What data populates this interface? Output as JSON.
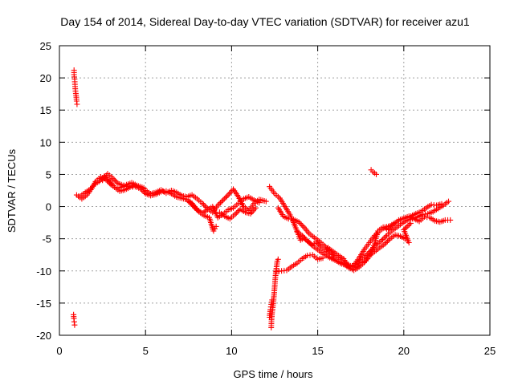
{
  "chart_data": {
    "type": "scatter",
    "title": "Day 154 of 2014, Sidereal Day-to-day VTEC variation (SDTVAR) for receiver azu1",
    "xlabel": "GPS time / hours",
    "ylabel": "SDTVAR / TECUs",
    "xlim": [
      0,
      25
    ],
    "ylim": [
      -20,
      25
    ],
    "x_ticks": [
      "0",
      "5",
      "10",
      "15",
      "20",
      "25"
    ],
    "y_ticks": [
      "-20",
      "-15",
      "-10",
      "-5",
      "0",
      "5",
      "10",
      "15",
      "20",
      "25"
    ],
    "grid": true,
    "marker": "+",
    "series": [
      {
        "name": "SDTVAR",
        "color": "#ff0000",
        "segments": [
          [
            [
              0.85,
              21.2
            ],
            [
              0.85,
              20.5
            ],
            [
              0.88,
              19.8
            ],
            [
              0.9,
              19.0
            ],
            [
              0.92,
              18.3
            ],
            [
              0.95,
              17.6
            ],
            [
              0.98,
              17.0
            ],
            [
              1.0,
              16.4
            ],
            [
              1.02,
              15.9
            ]
          ],
          [
            [
              0.82,
              -16.8
            ],
            [
              0.84,
              -17.4
            ],
            [
              0.86,
              -17.9
            ],
            [
              0.88,
              -18.4
            ]
          ],
          [
            [
              1.0,
              1.8
            ],
            [
              1.3,
              1.2
            ],
            [
              1.6,
              1.8
            ],
            [
              1.9,
              2.9
            ],
            [
              2.1,
              3.9
            ],
            [
              2.4,
              4.6
            ],
            [
              2.7,
              4.2
            ],
            [
              3.0,
              3.4
            ],
            [
              3.3,
              2.8
            ],
            [
              3.6,
              3.0
            ],
            [
              3.9,
              3.4
            ],
            [
              4.2,
              3.7
            ],
            [
              4.5,
              3.3
            ],
            [
              4.8,
              3.0
            ],
            [
              5.0,
              2.5
            ],
            [
              5.3,
              2.0
            ],
            [
              5.6,
              2.2
            ],
            [
              5.9,
              2.6
            ],
            [
              6.2,
              2.1
            ],
            [
              6.5,
              2.5
            ],
            [
              6.8,
              2.2
            ],
            [
              7.1,
              1.7
            ],
            [
              7.4,
              1.5
            ],
            [
              7.7,
              1.8
            ],
            [
              8.0,
              1.2
            ],
            [
              8.3,
              0.5
            ],
            [
              8.6,
              -0.3
            ],
            [
              8.9,
              -0.9
            ],
            [
              9.2,
              0.2
            ],
            [
              9.5,
              1.0
            ],
            [
              9.8,
              1.8
            ],
            [
              10.1,
              2.7
            ],
            [
              10.4,
              1.5
            ],
            [
              10.7,
              0.0
            ],
            [
              11.0,
              -0.6
            ],
            [
              11.3,
              0.5
            ],
            [
              11.6,
              1.1
            ],
            [
              12.0,
              0.8
            ]
          ],
          [
            [
              1.2,
              1.6
            ],
            [
              1.5,
              2.2
            ],
            [
              1.8,
              2.7
            ],
            [
              2.0,
              3.4
            ],
            [
              2.3,
              3.9
            ],
            [
              2.6,
              4.7
            ],
            [
              2.9,
              4.1
            ],
            [
              3.2,
              3.0
            ],
            [
              3.5,
              2.4
            ],
            [
              3.8,
              2.6
            ],
            [
              4.1,
              3.0
            ],
            [
              4.4,
              3.1
            ],
            [
              4.7,
              2.8
            ],
            [
              5.0,
              2.0
            ],
            [
              5.3,
              1.7
            ],
            [
              5.6,
              1.9
            ],
            [
              5.9,
              2.3
            ],
            [
              6.2,
              2.4
            ],
            [
              6.5,
              2.0
            ],
            [
              6.8,
              1.5
            ],
            [
              7.1,
              1.3
            ],
            [
              7.4,
              1.1
            ],
            [
              7.7,
              0.5
            ],
            [
              8.0,
              -0.5
            ],
            [
              8.3,
              -1.0
            ],
            [
              8.6,
              -0.5
            ],
            [
              8.9,
              0.0
            ],
            [
              9.2,
              -1.7
            ],
            [
              9.5,
              -1.2
            ],
            [
              9.8,
              -0.5
            ],
            [
              10.1,
              -0.2
            ],
            [
              10.4,
              0.5
            ],
            [
              10.7,
              1.2
            ],
            [
              11.0,
              1.5
            ],
            [
              11.3,
              1.0
            ],
            [
              11.6,
              0.6
            ]
          ],
          [
            [
              2.5,
              4.1
            ],
            [
              2.8,
              5.1
            ],
            [
              3.1,
              4.4
            ],
            [
              3.4,
              3.6
            ],
            [
              3.7,
              3.3
            ],
            [
              4.0,
              3.1
            ],
            [
              4.3,
              3.3
            ],
            [
              4.6,
              3.1
            ],
            [
              4.9,
              2.9
            ]
          ],
          [
            [
              7.5,
              0.8
            ],
            [
              7.8,
              0.0
            ],
            [
              8.1,
              -0.8
            ],
            [
              8.4,
              -1.4
            ],
            [
              8.7,
              -1.7
            ],
            [
              8.95,
              -3.8
            ],
            [
              9.1,
              -3.1
            ]
          ],
          [
            [
              9.3,
              -0.9
            ],
            [
              9.6,
              -1.5
            ],
            [
              9.9,
              -1.9
            ],
            [
              10.2,
              -1.2
            ],
            [
              10.5,
              -0.4
            ],
            [
              10.8,
              -0.9
            ],
            [
              11.1,
              -1.1
            ],
            [
              11.4,
              -0.2
            ]
          ],
          [
            [
              12.2,
              3.1
            ],
            [
              12.5,
              2.0
            ],
            [
              12.8,
              1.3
            ],
            [
              13.1,
              0.0
            ],
            [
              13.4,
              -1.3
            ],
            [
              13.6,
              -2.5
            ],
            [
              13.8,
              -3.8
            ],
            [
              14.0,
              -5.2
            ],
            [
              14.2,
              -4.9
            ],
            [
              14.5,
              -5.6
            ],
            [
              14.7,
              -6.0
            ],
            [
              14.9,
              -5.5
            ],
            [
              15.2,
              -6.3
            ],
            [
              15.5,
              -7.0
            ],
            [
              15.8,
              -7.5
            ],
            [
              16.0,
              -8.3
            ],
            [
              16.3,
              -8.8
            ],
            [
              16.6,
              -9.1
            ],
            [
              16.9,
              -9.3
            ],
            [
              17.2,
              -9.0
            ],
            [
              17.5,
              -8.2
            ],
            [
              17.8,
              -7.6
            ],
            [
              18.1,
              -6.8
            ],
            [
              18.4,
              -5.9
            ],
            [
              18.7,
              -5.3
            ],
            [
              19.0,
              -4.5
            ],
            [
              19.3,
              -3.8
            ],
            [
              19.6,
              -3.2
            ],
            [
              19.9,
              -2.6
            ],
            [
              20.2,
              -2.1
            ],
            [
              20.5,
              -1.9
            ],
            [
              20.8,
              -1.6
            ],
            [
              21.1,
              -1.2
            ],
            [
              21.4,
              -1.1
            ],
            [
              21.7,
              -0.8
            ],
            [
              22.0,
              -0.3
            ],
            [
              22.3,
              0.2
            ],
            [
              22.6,
              0.8
            ]
          ],
          [
            [
              12.7,
              -0.2
            ],
            [
              13.0,
              -1.5
            ],
            [
              13.3,
              -1.9
            ],
            [
              13.6,
              -2.0
            ],
            [
              13.9,
              -2.4
            ],
            [
              14.2,
              -3.2
            ],
            [
              14.5,
              -4.2
            ],
            [
              14.8,
              -4.8
            ],
            [
              15.1,
              -5.4
            ],
            [
              15.4,
              -6.1
            ],
            [
              15.7,
              -6.9
            ],
            [
              16.0,
              -7.6
            ],
            [
              16.3,
              -8.2
            ],
            [
              16.6,
              -8.8
            ],
            [
              16.9,
              -9.2
            ],
            [
              17.2,
              -9.5
            ],
            [
              17.5,
              -8.9
            ],
            [
              17.8,
              -8.4
            ],
            [
              18.0,
              -7.8
            ],
            [
              18.3,
              -5.8
            ],
            [
              18.5,
              -3.8
            ],
            [
              18.8,
              -3.2
            ],
            [
              19.1,
              -3.6
            ],
            [
              19.4,
              -2.8
            ],
            [
              19.7,
              -2.1
            ],
            [
              20.0,
              -1.8
            ],
            [
              20.3,
              -1.5
            ],
            [
              20.6,
              -1.9
            ],
            [
              20.9,
              -2.3
            ],
            [
              21.2,
              -1.6
            ],
            [
              21.5,
              -1.7
            ],
            [
              21.8,
              -2.2
            ],
            [
              22.1,
              -2.4
            ],
            [
              22.4,
              -2.1
            ],
            [
              22.7,
              -2.1
            ]
          ],
          [
            [
              13.8,
              -3.9
            ],
            [
              14.1,
              -4.5
            ],
            [
              14.4,
              -5.3
            ],
            [
              14.7,
              -6.1
            ],
            [
              15.0,
              -6.7
            ],
            [
              15.3,
              -7.3
            ],
            [
              15.6,
              -7.8
            ],
            [
              15.9,
              -8.2
            ],
            [
              16.2,
              -8.6
            ],
            [
              16.5,
              -8.9
            ],
            [
              16.8,
              -9.5
            ],
            [
              17.1,
              -9.9
            ],
            [
              17.4,
              -9.4
            ],
            [
              17.7,
              -8.7
            ],
            [
              18.0,
              -7.6
            ],
            [
              18.3,
              -7.0
            ],
            [
              18.6,
              -6.4
            ],
            [
              18.9,
              -5.8
            ],
            [
              19.2,
              -5.0
            ],
            [
              19.5,
              -4.4
            ],
            [
              19.8,
              -4.6
            ],
            [
              20.1,
              -5.0
            ],
            [
              20.3,
              -5.6
            ],
            [
              20.0,
              -3.6
            ],
            [
              20.4,
              -2.6
            ]
          ],
          [
            [
              15.6,
              -6.4
            ],
            [
              15.9,
              -7.0
            ],
            [
              16.2,
              -7.6
            ],
            [
              16.5,
              -8.1
            ],
            [
              16.8,
              -9.4
            ],
            [
              17.1,
              -9.1
            ],
            [
              17.4,
              -8.0
            ],
            [
              17.7,
              -6.7
            ],
            [
              18.0,
              -5.6
            ],
            [
              18.3,
              -4.5
            ],
            [
              18.6,
              -3.8
            ],
            [
              18.9,
              -3.2
            ],
            [
              19.2,
              -3.0
            ],
            [
              19.5,
              -2.5
            ],
            [
              19.8,
              -2.0
            ],
            [
              20.1,
              -1.8
            ],
            [
              20.4,
              -1.5
            ],
            [
              20.7,
              -1.1
            ],
            [
              21.0,
              -0.8
            ],
            [
              21.3,
              -0.2
            ],
            [
              21.6,
              0.3
            ],
            [
              21.9,
              0.2
            ],
            [
              22.2,
              0.4
            ]
          ],
          [
            [
              12.3,
              -18.8
            ],
            [
              12.32,
              -17.6
            ],
            [
              12.35,
              -16.5
            ],
            [
              12.4,
              -15.4
            ],
            [
              12.45,
              -14.2
            ],
            [
              12.5,
              -12.5
            ],
            [
              12.55,
              -10.7
            ],
            [
              12.6,
              -9.6
            ],
            [
              12.65,
              -8.5
            ],
            [
              12.7,
              -8.2
            ]
          ],
          [
            [
              12.2,
              -17.2
            ],
            [
              12.25,
              -16.0
            ],
            [
              12.3,
              -15.2
            ],
            [
              12.35,
              -14.5
            ]
          ],
          [
            [
              12.6,
              -10.1
            ],
            [
              12.9,
              -10.0
            ],
            [
              13.2,
              -9.9
            ],
            [
              13.5,
              -9.3
            ],
            [
              13.8,
              -8.8
            ],
            [
              14.1,
              -8.1
            ],
            [
              14.4,
              -7.6
            ],
            [
              14.7,
              -7.5
            ],
            [
              15.0,
              -8.2
            ],
            [
              15.3,
              -8.0
            ]
          ],
          [
            [
              18.1,
              5.7
            ],
            [
              18.2,
              5.4
            ],
            [
              18.3,
              5.2
            ],
            [
              18.4,
              5.0
            ]
          ]
        ]
      }
    ]
  }
}
